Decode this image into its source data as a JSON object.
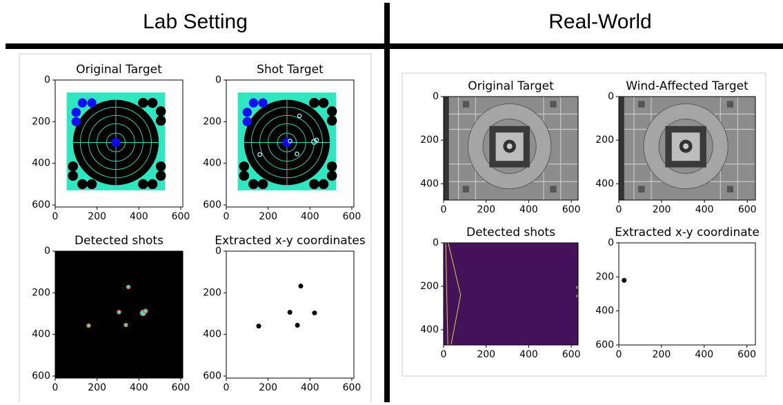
{
  "headers": {
    "left": "Lab Setting",
    "right": "Real-World"
  },
  "chart_data": [
    {
      "type": "image",
      "title": "Original Target",
      "xlim": [
        0,
        610
      ],
      "ylim": [
        610,
        0
      ],
      "xticks": [
        0,
        200,
        400,
        600
      ],
      "yticks": [
        0,
        200,
        400,
        600
      ]
    },
    {
      "type": "image",
      "title": "Shot Target",
      "xlim": [
        0,
        610
      ],
      "ylim": [
        610,
        0
      ],
      "xticks": [
        0,
        200,
        400,
        600
      ],
      "yticks": [
        0,
        200,
        400,
        600
      ]
    },
    {
      "type": "image",
      "title": "Detected shots",
      "xlim": [
        0,
        610
      ],
      "ylim": [
        610,
        0
      ],
      "xticks": [
        0,
        200,
        400,
        600
      ],
      "yticks": [
        0,
        200,
        400,
        600
      ]
    },
    {
      "type": "scatter",
      "title": "Extracted x-y coordinates",
      "xlim": [
        0,
        610
      ],
      "ylim": [
        610,
        0
      ],
      "xticks": [
        0,
        200,
        400,
        600
      ],
      "yticks": [
        0,
        200,
        400,
        600
      ],
      "color": "#000000",
      "x": [
        155,
        304,
        356,
        340,
        422
      ],
      "y": [
        360,
        294,
        168,
        356,
        297
      ]
    },
    {
      "type": "image",
      "title": "Original Target",
      "xlim": [
        0,
        632
      ],
      "ylim": [
        475,
        0
      ],
      "xticks": [
        0,
        200,
        400,
        600
      ],
      "yticks": [
        0,
        200,
        400
      ]
    },
    {
      "type": "image",
      "title": "Wind-Affected Target",
      "xlim": [
        0,
        638
      ],
      "ylim": [
        475,
        0
      ],
      "xticks": [
        0,
        200,
        400,
        600
      ],
      "yticks": [
        0,
        200,
        400
      ]
    },
    {
      "type": "image",
      "title": "Detected shots",
      "xlim": [
        0,
        632
      ],
      "ylim": [
        470,
        0
      ],
      "xticks": [
        0,
        200,
        400,
        600
      ],
      "yticks": [
        0,
        200,
        400
      ]
    },
    {
      "type": "scatter",
      "title": "Extracted x-y coordinate",
      "xlim": [
        0,
        640
      ],
      "ylim": [
        600,
        0
      ],
      "xticks": [
        0,
        200,
        400,
        600
      ],
      "yticks": [
        0,
        200,
        400,
        600
      ],
      "color": "#000000",
      "x": [
        25
      ],
      "y": [
        220
      ]
    }
  ]
}
